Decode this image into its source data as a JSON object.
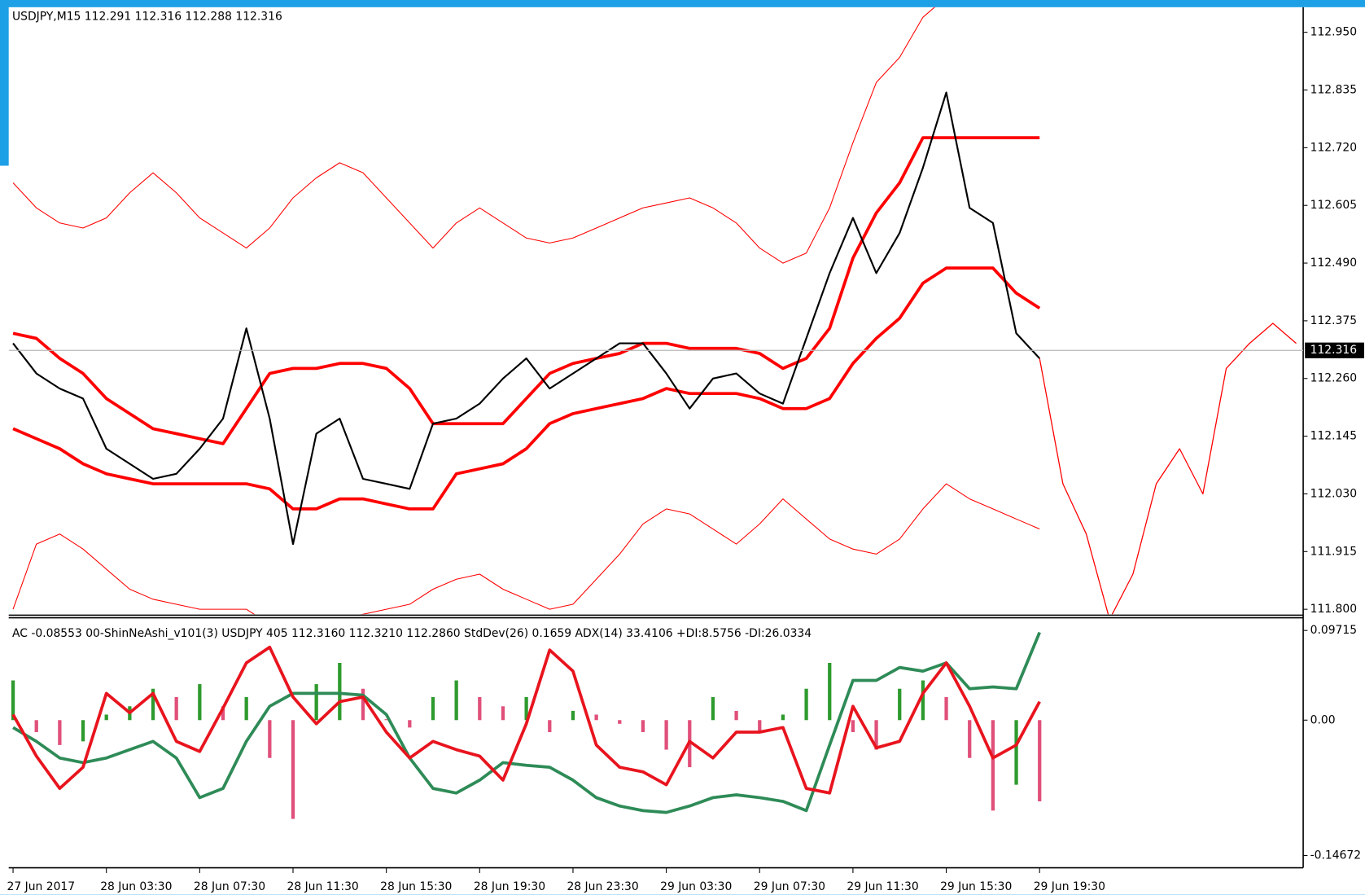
{
  "chart_data": [
    {
      "type": "line",
      "title": "USDJPY,M15  112.291 112.316 112.288 112.316",
      "categories": [
        "27 Jun 2017",
        null,
        null,
        null,
        "28 Jun 03:30",
        null,
        null,
        null,
        "28 Jun 07:30",
        null,
        null,
        null,
        "28 Jun 11:30",
        null,
        null,
        null,
        "28 Jun 15:30",
        null,
        null,
        null,
        "28 Jun 19:30",
        null,
        null,
        null,
        "28 Jun 23:30",
        null,
        null,
        null,
        "29 Jun 03:30",
        null,
        null,
        null,
        "29 Jun 07:30",
        null,
        null,
        null,
        "29 Jun 11:30",
        null,
        null,
        null,
        "29 Jun 15:30",
        null,
        null,
        null,
        "29 Jun 19:30",
        null,
        null,
        null,
        null,
        null,
        null,
        null,
        null,
        null,
        null,
        null
      ],
      "ylim": [
        111.79,
        113.0
      ],
      "yticks": [
        {
          "value": 111.8,
          "label": "111.800"
        },
        111.915,
        {
          "value": 112.03,
          "label": "112.030"
        },
        112.145,
        {
          "value": 112.26,
          "label": "112.260"
        },
        112.375,
        {
          "value": 112.49,
          "label": "112.490"
        },
        112.605,
        {
          "value": 112.72,
          "label": "112.720"
        },
        112.835,
        {
          "value": 112.95,
          "label": "112.950"
        }
      ],
      "last_price": 112.316,
      "series": [
        {
          "color": "#ff0000",
          "width": 1,
          "values": [
            112.65,
            112.6,
            112.57,
            112.56,
            112.58,
            112.63,
            112.67,
            112.63,
            112.58,
            112.55,
            112.52,
            112.56,
            112.62,
            112.66,
            112.69,
            112.67,
            112.62,
            112.57,
            112.52,
            112.57,
            112.6,
            112.57,
            112.54,
            112.53,
            112.54,
            112.56,
            112.58,
            112.6,
            112.61,
            112.62,
            112.6,
            112.57,
            112.52,
            112.49,
            112.51,
            112.6,
            112.73,
            112.85,
            112.9,
            112.98,
            113.02,
            113.05,
            113.05,
            113.03,
            113.02,
            null,
            null,
            null,
            null,
            null,
            null,
            null,
            null,
            null,
            null,
            null
          ]
        },
        {
          "color": "#ff0000",
          "width": 1,
          "values": [
            111.8,
            111.93,
            111.95,
            111.92,
            111.88,
            111.84,
            111.82,
            111.81,
            111.8,
            111.8,
            111.8,
            111.77,
            111.7,
            111.75,
            111.78,
            111.79,
            111.8,
            111.81,
            111.84,
            111.86,
            111.87,
            111.84,
            111.82,
            111.8,
            111.81,
            111.86,
            111.91,
            111.97,
            112.0,
            111.99,
            111.96,
            111.93,
            111.97,
            112.02,
            111.98,
            111.94,
            111.92,
            111.91,
            111.94,
            112.0,
            112.05,
            112.02,
            112.0,
            111.98,
            111.96,
            null,
            null,
            null,
            null,
            null,
            null,
            null,
            null,
            null,
            null,
            null
          ]
        },
        {
          "color": "#ff0000",
          "width": 3.5,
          "values": [
            112.35,
            112.34,
            112.3,
            112.27,
            112.22,
            112.19,
            112.16,
            112.15,
            112.14,
            112.13,
            112.2,
            112.27,
            112.28,
            112.28,
            112.29,
            112.29,
            112.28,
            112.24,
            112.17,
            112.17,
            112.17,
            112.17,
            112.22,
            112.27,
            112.29,
            112.3,
            112.31,
            112.33,
            112.33,
            112.32,
            112.32,
            112.32,
            112.31,
            112.28,
            112.3,
            112.36,
            112.5,
            112.59,
            112.65,
            112.74,
            112.74,
            112.74,
            112.74,
            112.74,
            112.74,
            null,
            null,
            null,
            null,
            null,
            null,
            null,
            null,
            null,
            null,
            null
          ]
        },
        {
          "color": "#ff0000",
          "width": 3.5,
          "values": [
            112.16,
            112.14,
            112.12,
            112.09,
            112.07,
            112.06,
            112.05,
            112.05,
            112.05,
            112.05,
            112.05,
            112.04,
            112.0,
            112.0,
            112.02,
            112.02,
            112.01,
            112.0,
            112.0,
            112.07,
            112.08,
            112.09,
            112.12,
            112.17,
            112.19,
            112.2,
            112.21,
            112.22,
            112.24,
            112.23,
            112.23,
            112.23,
            112.22,
            112.2,
            112.2,
            112.22,
            112.29,
            112.34,
            112.38,
            112.45,
            112.48,
            112.48,
            112.48,
            112.43,
            112.4,
            null,
            null,
            null,
            null,
            null,
            null,
            null,
            null,
            null,
            null,
            null
          ]
        },
        {
          "color": "#000000",
          "width": 2,
          "values": [
            112.33,
            112.27,
            112.24,
            112.22,
            112.12,
            112.09,
            112.06,
            112.07,
            112.12,
            112.18,
            112.36,
            112.18,
            111.93,
            112.15,
            112.18,
            112.06,
            112.05,
            112.04,
            112.17,
            112.18,
            112.21,
            112.26,
            112.3,
            112.24,
            112.27,
            112.3,
            112.33,
            112.33,
            112.27,
            112.2,
            112.26,
            112.27,
            112.23,
            112.21,
            112.34,
            112.47,
            112.58,
            112.47,
            112.55,
            112.68,
            112.83,
            112.6,
            112.57,
            112.35,
            112.3,
            null,
            null,
            null,
            null,
            null,
            null,
            null,
            null,
            null,
            null,
            null
          ]
        },
        {
          "color": "#ff0000",
          "width": 1.2,
          "values": [
            null,
            null,
            null,
            null,
            null,
            null,
            null,
            null,
            null,
            null,
            null,
            null,
            null,
            null,
            null,
            null,
            null,
            null,
            null,
            null,
            null,
            null,
            null,
            null,
            null,
            null,
            null,
            null,
            null,
            null,
            null,
            null,
            null,
            null,
            null,
            null,
            null,
            null,
            null,
            null,
            null,
            null,
            null,
            null,
            112.3,
            112.05,
            111.95,
            111.78,
            111.87,
            112.05,
            112.12,
            112.03,
            112.28,
            112.33,
            112.37,
            112.33
          ]
        }
      ]
    },
    {
      "type": "line",
      "title": "AC -0.08553 00-ShinNeAshi_v101(3) USDJPY 405 112.3160 112.3210 112.2860 StdDev(26) 0.1659 ADX(14) 33.4106 +DI:8.5756 -DI:26.0334",
      "ylim": [
        -0.159,
        0.109
      ],
      "yticks": [
        -0.14672,
        {
          "value": 0,
          "label": "0.00"
        },
        0.09715
      ],
      "series": [
        {
          "type": "bar",
          "color": "#2e9a2e",
          "color_down": "#e0507a",
          "values": [
            0.043,
            -0.013,
            -0.027,
            -0.023,
            0.006,
            0.015,
            0.034,
            0.025,
            0.039,
            0.015,
            0.025,
            -0.041,
            -0.107,
            0.039,
            0.062,
            0.034,
            0.001,
            -0.008,
            0.025,
            0.043,
            0.025,
            0.015,
            0.025,
            -0.013,
            0.01,
            0.006,
            -0.004,
            -0.013,
            -0.032,
            -0.051,
            0.025,
            0.01,
            -0.013,
            0.006,
            0.034,
            0.062,
            -0.013,
            -0.032,
            0.034,
            0.043,
            0.025,
            -0.041,
            -0.098,
            -0.07,
            -0.088,
            null,
            null,
            null,
            null,
            null,
            null,
            null,
            null,
            null,
            null,
            null
          ]
        },
        {
          "color": "#2e8b57",
          "width": 3.5,
          "values": [
            -0.008,
            -0.023,
            -0.041,
            -0.046,
            -0.041,
            -0.032,
            -0.023,
            -0.041,
            -0.084,
            -0.074,
            -0.023,
            0.015,
            0.029,
            0.029,
            0.029,
            0.027,
            0.006,
            -0.041,
            -0.074,
            -0.079,
            -0.065,
            -0.046,
            -0.049,
            -0.051,
            -0.065,
            -0.084,
            -0.093,
            -0.098,
            -0.1,
            -0.093,
            -0.084,
            -0.081,
            -0.084,
            -0.088,
            -0.098,
            -0.027,
            0.043,
            0.043,
            0.057,
            0.053,
            0.062,
            0.034,
            0.036,
            0.034,
            0.095,
            null,
            null,
            null,
            null,
            null,
            null,
            null,
            null,
            null,
            null,
            null
          ]
        },
        {
          "color": "#e8141e",
          "width": 3.5,
          "values": [
            0.006,
            -0.039,
            -0.074,
            -0.051,
            0.029,
            0.008,
            0.029,
            -0.023,
            -0.034,
            0.013,
            0.062,
            0.079,
            0.025,
            -0.004,
            0.02,
            0.025,
            -0.013,
            -0.041,
            -0.023,
            -0.032,
            -0.039,
            -0.065,
            -0.004,
            0.076,
            0.053,
            -0.027,
            -0.051,
            -0.056,
            -0.07,
            -0.023,
            -0.041,
            -0.013,
            -0.013,
            -0.008,
            -0.074,
            -0.079,
            0.015,
            -0.03,
            -0.023,
            0.029,
            0.062,
            0.015,
            -0.041,
            -0.027,
            0.02,
            null,
            null,
            null,
            null,
            null,
            null,
            null,
            null,
            null,
            null,
            null
          ]
        }
      ]
    }
  ]
}
